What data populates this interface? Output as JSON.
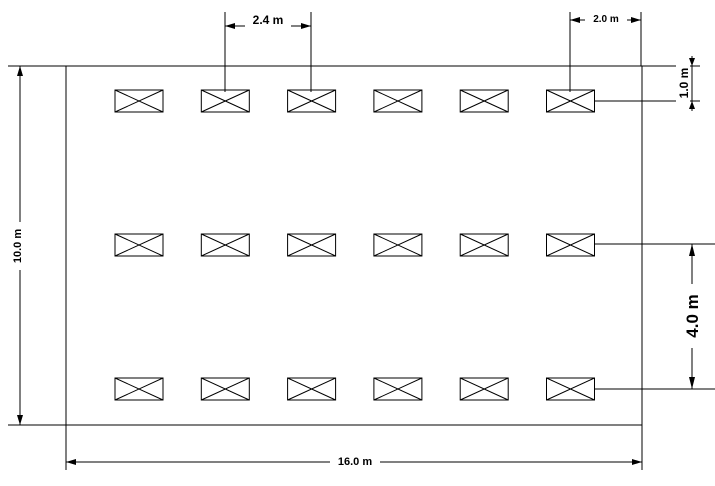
{
  "drawing": {
    "dimensions": {
      "width": "16.0 m",
      "height": "10.0 m",
      "fixture_spacing": "2.4 m",
      "edge_offset_x": "2.0 m",
      "edge_offset_y": "1.0 m",
      "row_spacing": "4.0 m"
    },
    "grid": {
      "rows": 3,
      "columns": 6
    },
    "symbol": "crossed-rectangle-luminaire",
    "line_color": "#000000",
    "background_color": "#ffffff"
  }
}
